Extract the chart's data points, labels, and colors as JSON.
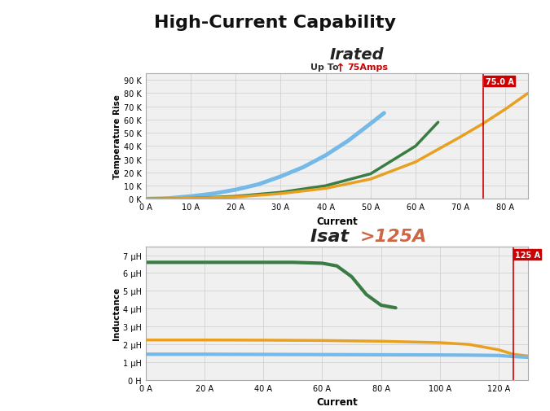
{
  "title": "High-Current Capability",
  "title_fontsize": 16,
  "background_color": "#ffffff",
  "top_plot": {
    "irated_label": "Irated",
    "irated_sublabel": "Up To",
    "irated_amps": "75Amps",
    "xlabel": "Current",
    "ylabel": "Temperature Rise",
    "yticks": [
      0,
      10,
      20,
      30,
      40,
      50,
      60,
      70,
      80,
      90
    ],
    "ytick_labels": [
      "0 K",
      "10 K",
      "20 K",
      "30 K",
      "40 K",
      "50 K",
      "60 K",
      "70 K",
      "80 K",
      "90 K"
    ],
    "xticks": [
      0,
      10,
      20,
      30,
      40,
      50,
      60,
      70,
      80
    ],
    "xtick_labels": [
      "0 A",
      "10 A",
      "20 A",
      "30 A",
      "40 A",
      "50 A",
      "60 A",
      "70 A",
      "80 A"
    ],
    "xlim": [
      0,
      85
    ],
    "ylim": [
      0,
      95
    ],
    "vline_x": 75,
    "vline_label": "75.0 A",
    "curve_blue_x": [
      0,
      5,
      10,
      15,
      20,
      25,
      30,
      35,
      40,
      45,
      50,
      53
    ],
    "curve_blue_y": [
      0,
      0.5,
      2,
      4,
      7,
      11,
      17,
      24,
      33,
      44,
      57,
      65
    ],
    "curve_green_x": [
      0,
      10,
      20,
      30,
      40,
      50,
      60,
      65
    ],
    "curve_green_y": [
      0,
      0.5,
      2,
      5,
      10,
      19,
      40,
      58
    ],
    "curve_orange_x": [
      0,
      10,
      20,
      30,
      40,
      50,
      60,
      70,
      75,
      80,
      85
    ],
    "curve_orange_y": [
      0,
      0.5,
      1.5,
      4,
      8,
      15,
      28,
      47,
      57,
      68,
      80
    ],
    "blue_color": "#74b9e8",
    "green_color": "#3a7d44",
    "orange_color": "#e8a020",
    "grid_color": "#cccccc",
    "vline_color": "#cc0000"
  },
  "bottom_plot": {
    "isat_label": "Isat",
    "isat_value": ">125A",
    "xlabel": "Current",
    "ylabel": "Inductance",
    "yticks": [
      0,
      1,
      2,
      3,
      4,
      5,
      6,
      7
    ],
    "ytick_labels": [
      "0 H",
      "1 μH",
      "2 μH",
      "3 μH",
      "4 μH",
      "5 μH",
      "6 μH",
      "7 μH"
    ],
    "xticks": [
      0,
      20,
      40,
      60,
      80,
      100,
      120
    ],
    "xtick_labels": [
      "0 A",
      "20 A",
      "40 A",
      "60 A",
      "80 A",
      "100 A",
      "120 A"
    ],
    "xlim": [
      0,
      130
    ],
    "ylim": [
      0,
      7.5
    ],
    "vline_x": 125,
    "vline_label": "125 A",
    "curve_green_x": [
      0,
      10,
      20,
      30,
      40,
      50,
      60,
      65,
      70,
      75,
      80,
      85
    ],
    "curve_green_y": [
      6.6,
      6.6,
      6.6,
      6.6,
      6.6,
      6.6,
      6.55,
      6.4,
      5.8,
      4.8,
      4.2,
      4.05
    ],
    "curve_orange_x": [
      0,
      20,
      40,
      60,
      80,
      100,
      110,
      120,
      125,
      130
    ],
    "curve_orange_y": [
      2.25,
      2.25,
      2.24,
      2.22,
      2.18,
      2.1,
      2.0,
      1.7,
      1.45,
      1.35
    ],
    "curve_blue_x": [
      0,
      20,
      40,
      60,
      80,
      100,
      110,
      120,
      125,
      130
    ],
    "curve_blue_y": [
      1.45,
      1.45,
      1.44,
      1.43,
      1.42,
      1.41,
      1.4,
      1.38,
      1.32,
      1.28
    ],
    "blue_color": "#74b9e8",
    "green_color": "#3a7d44",
    "orange_color": "#e8a020",
    "grid_color": "#cccccc",
    "vline_color": "#cc0000"
  }
}
